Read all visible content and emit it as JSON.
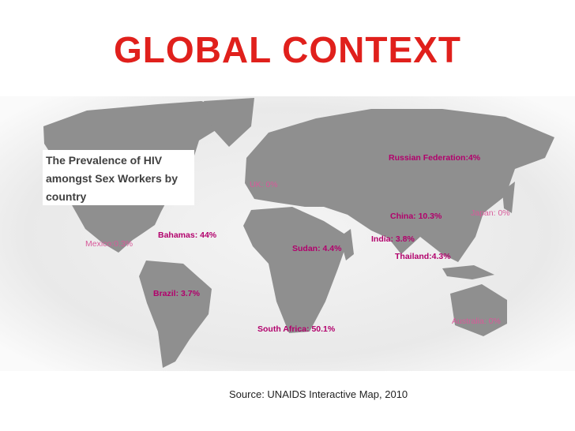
{
  "title": "GLOBAL CONTEXT",
  "info_box": "The Prevalence of HIV amongst Sex Workers by country",
  "labels": [
    {
      "text": "Russian Federation:4%"
    },
    {
      "text": "UK: 0%"
    },
    {
      "text": "China: 10.3%"
    },
    {
      "text": "Japan: 0%"
    },
    {
      "text": "Bahamas: 44%"
    },
    {
      "text": "India: 3.8%"
    },
    {
      "text": "Mexico:0.3%"
    },
    {
      "text": "Sudan: 4.4%"
    },
    {
      "text": "Thailand:4.3%"
    },
    {
      "text": "Brazil: 3.7%"
    },
    {
      "text": "Australia: 0%"
    },
    {
      "text": "South Africa: 50.1%"
    }
  ],
  "source": "Source: UNAIDS Interactive Map, 2010"
}
